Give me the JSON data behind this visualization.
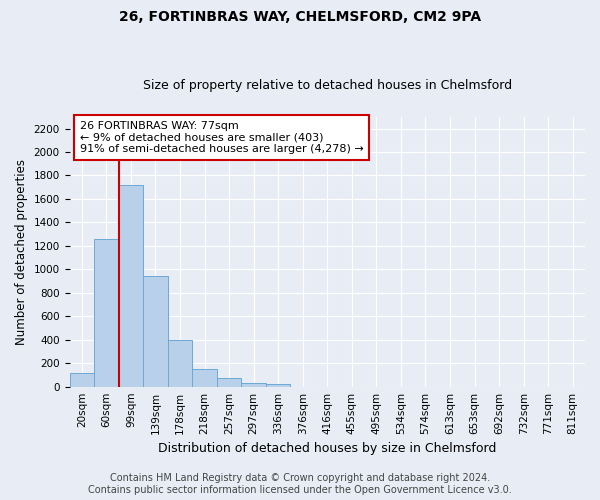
{
  "title": "26, FORTINBRAS WAY, CHELMSFORD, CM2 9PA",
  "subtitle": "Size of property relative to detached houses in Chelmsford",
  "xlabel": "Distribution of detached houses by size in Chelmsford",
  "ylabel": "Number of detached properties",
  "bar_labels": [
    "20sqm",
    "60sqm",
    "99sqm",
    "139sqm",
    "178sqm",
    "218sqm",
    "257sqm",
    "297sqm",
    "336sqm",
    "376sqm",
    "416sqm",
    "455sqm",
    "495sqm",
    "534sqm",
    "574sqm",
    "613sqm",
    "653sqm",
    "692sqm",
    "732sqm",
    "771sqm",
    "811sqm"
  ],
  "bar_values": [
    120,
    1260,
    1720,
    940,
    400,
    150,
    75,
    30,
    20,
    0,
    0,
    0,
    0,
    0,
    0,
    0,
    0,
    0,
    0,
    0,
    0
  ],
  "bar_color": "#b8d0ea",
  "bar_edge_color": "#6aaad4",
  "vline_x": 1.5,
  "annotation_text": "26 FORTINBRAS WAY: 77sqm\n← 9% of detached houses are smaller (403)\n91% of semi-detached houses are larger (4,278) →",
  "annotation_box_color": "#ffffff",
  "annotation_box_edge_color": "#cc0000",
  "vline_color": "#cc0000",
  "ylim": [
    0,
    2300
  ],
  "yticks": [
    0,
    200,
    400,
    600,
    800,
    1000,
    1200,
    1400,
    1600,
    1800,
    2000,
    2200
  ],
  "background_color": "#e8edf5",
  "plot_background_color": "#e8edf5",
  "grid_color": "#ffffff",
  "footer_line1": "Contains HM Land Registry data © Crown copyright and database right 2024.",
  "footer_line2": "Contains public sector information licensed under the Open Government Licence v3.0.",
  "title_fontsize": 10,
  "subtitle_fontsize": 9,
  "annotation_fontsize": 8,
  "ylabel_fontsize": 8.5,
  "xlabel_fontsize": 9,
  "tick_fontsize": 7.5,
  "footer_fontsize": 7
}
